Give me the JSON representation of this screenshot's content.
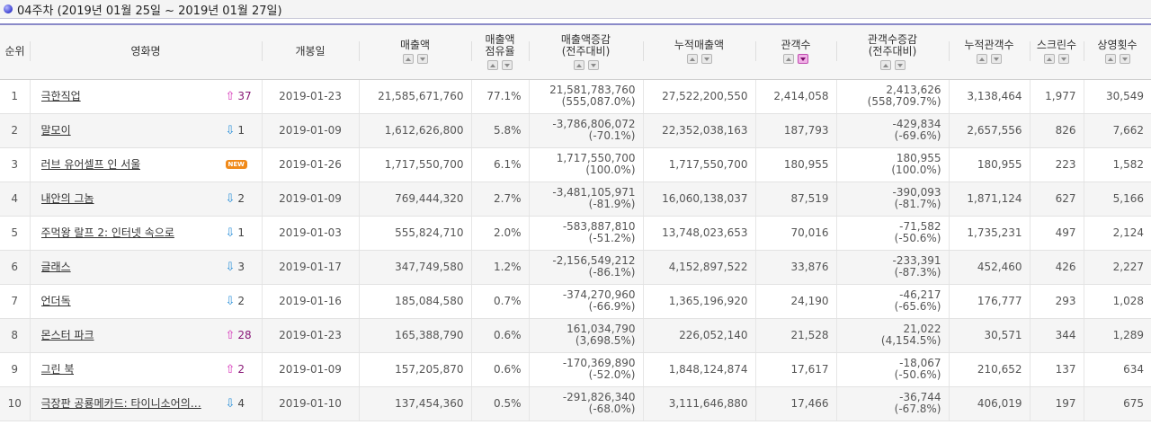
{
  "title": "04주차 (2019년 01월 25일 ~ 2019년 01월 27일)",
  "columns": [
    {
      "l1": "순위",
      "l2": "",
      "sort": false
    },
    {
      "l1": "영화명",
      "l2": "",
      "sort": false
    },
    {
      "l1": "개봉일",
      "l2": "",
      "sort": false
    },
    {
      "l1": "매출액",
      "l2": "",
      "sort": true
    },
    {
      "l1": "매출액",
      "l2": "점유율",
      "sort": true
    },
    {
      "l1": "매출액증감",
      "l2": "(전주대비)",
      "sort": true
    },
    {
      "l1": "누적매출액",
      "l2": "",
      "sort": true
    },
    {
      "l1": "관객수",
      "l2": "",
      "sort": true,
      "active": true
    },
    {
      "l1": "관객수증감",
      "l2": "(전주대비)",
      "sort": true
    },
    {
      "l1": "누적관객수",
      "l2": "",
      "sort": true
    },
    {
      "l1": "스크린수",
      "l2": "",
      "sort": true
    },
    {
      "l1": "상영횟수",
      "l2": "",
      "sort": true
    }
  ],
  "rows": [
    {
      "rank": "1",
      "title": "극한직업",
      "change_type": "up",
      "change": "37",
      "release": "2019-01-23",
      "sales": "21,585,671,760",
      "share": "77.1%",
      "sales_diff": "21,581,783,760",
      "sales_diff_pct": "(555,087.0%)",
      "cum_sales": "27,522,200,550",
      "audience": "2,414,058",
      "aud_diff": "2,413,626",
      "aud_diff_pct": "(558,709.7%)",
      "cum_audience": "3,138,464",
      "screens": "1,977",
      "shows": "30,549"
    },
    {
      "rank": "2",
      "title": "말모이",
      "change_type": "down",
      "change": "1",
      "release": "2019-01-09",
      "sales": "1,612,626,800",
      "share": "5.8%",
      "sales_diff": "-3,786,806,072",
      "sales_diff_pct": "(-70.1%)",
      "cum_sales": "22,352,038,163",
      "audience": "187,793",
      "aud_diff": "-429,834",
      "aud_diff_pct": "(-69.6%)",
      "cum_audience": "2,657,556",
      "screens": "826",
      "shows": "7,662"
    },
    {
      "rank": "3",
      "title": "러브 유어셀프 인 서울",
      "change_type": "new",
      "change": "NEW",
      "release": "2019-01-26",
      "sales": "1,717,550,700",
      "share": "6.1%",
      "sales_diff": "1,717,550,700",
      "sales_diff_pct": "(100.0%)",
      "cum_sales": "1,717,550,700",
      "audience": "180,955",
      "aud_diff": "180,955",
      "aud_diff_pct": "(100.0%)",
      "cum_audience": "180,955",
      "screens": "223",
      "shows": "1,582"
    },
    {
      "rank": "4",
      "title": "내안의 그놈",
      "change_type": "down",
      "change": "2",
      "release": "2019-01-09",
      "sales": "769,444,320",
      "share": "2.7%",
      "sales_diff": "-3,481,105,971",
      "sales_diff_pct": "(-81.9%)",
      "cum_sales": "16,060,138,037",
      "audience": "87,519",
      "aud_diff": "-390,093",
      "aud_diff_pct": "(-81.7%)",
      "cum_audience": "1,871,124",
      "screens": "627",
      "shows": "5,166"
    },
    {
      "rank": "5",
      "title": "주먹왕 랄프 2: 인터넷 속으로",
      "change_type": "down",
      "change": "1",
      "release": "2019-01-03",
      "sales": "555,824,710",
      "share": "2.0%",
      "sales_diff": "-583,887,810",
      "sales_diff_pct": "(-51.2%)",
      "cum_sales": "13,748,023,653",
      "audience": "70,016",
      "aud_diff": "-71,582",
      "aud_diff_pct": "(-50.6%)",
      "cum_audience": "1,735,231",
      "screens": "497",
      "shows": "2,124"
    },
    {
      "rank": "6",
      "title": "글래스",
      "change_type": "down",
      "change": "3",
      "release": "2019-01-17",
      "sales": "347,749,580",
      "share": "1.2%",
      "sales_diff": "-2,156,549,212",
      "sales_diff_pct": "(-86.1%)",
      "cum_sales": "4,152,897,522",
      "audience": "33,876",
      "aud_diff": "-233,391",
      "aud_diff_pct": "(-87.3%)",
      "cum_audience": "452,460",
      "screens": "426",
      "shows": "2,227"
    },
    {
      "rank": "7",
      "title": "언더독",
      "change_type": "down",
      "change": "2",
      "release": "2019-01-16",
      "sales": "185,084,580",
      "share": "0.7%",
      "sales_diff": "-374,270,960",
      "sales_diff_pct": "(-66.9%)",
      "cum_sales": "1,365,196,920",
      "audience": "24,190",
      "aud_diff": "-46,217",
      "aud_diff_pct": "(-65.6%)",
      "cum_audience": "176,777",
      "screens": "293",
      "shows": "1,028"
    },
    {
      "rank": "8",
      "title": "몬스터 파크",
      "change_type": "up",
      "change": "28",
      "release": "2019-01-23",
      "sales": "165,388,790",
      "share": "0.6%",
      "sales_diff": "161,034,790",
      "sales_diff_pct": "(3,698.5%)",
      "cum_sales": "226,052,140",
      "audience": "21,528",
      "aud_diff": "21,022",
      "aud_diff_pct": "(4,154.5%)",
      "cum_audience": "30,571",
      "screens": "344",
      "shows": "1,289"
    },
    {
      "rank": "9",
      "title": "그린 북",
      "change_type": "up",
      "change": "2",
      "release": "2019-01-09",
      "sales": "157,205,870",
      "share": "0.6%",
      "sales_diff": "-170,369,890",
      "sales_diff_pct": "(-52.0%)",
      "cum_sales": "1,848,124,874",
      "audience": "17,617",
      "aud_diff": "-18,067",
      "aud_diff_pct": "(-50.6%)",
      "cum_audience": "210,652",
      "screens": "137",
      "shows": "634"
    },
    {
      "rank": "10",
      "title": "극장판 공룡메카드: 타이니소어의…",
      "change_type": "down",
      "change": "4",
      "release": "2019-01-10",
      "sales": "137,454,360",
      "share": "0.5%",
      "sales_diff": "-291,826,340",
      "sales_diff_pct": "(-68.0%)",
      "cum_sales": "3,111,646,880",
      "audience": "17,466",
      "aud_diff": "-36,744",
      "aud_diff_pct": "(-67.8%)",
      "cum_audience": "406,019",
      "screens": "197",
      "shows": "675"
    }
  ],
  "colors": {
    "up": "#d630b8",
    "down": "#2a8fd8",
    "new": "#f08a1a",
    "header_line": "#8a8ac8"
  },
  "icons": {
    "title": "bullet-icon",
    "up": "up-arrow-icon",
    "down": "down-arrow-icon",
    "sort_up": "sort-asc-icon",
    "sort_down": "sort-desc-icon"
  }
}
